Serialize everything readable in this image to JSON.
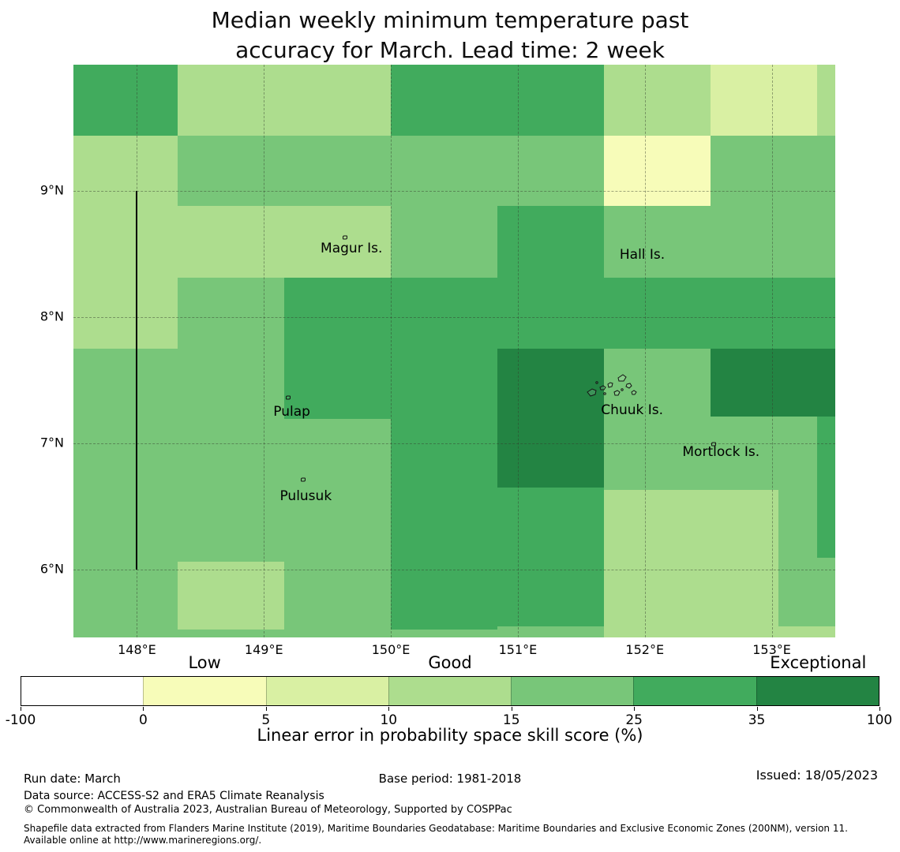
{
  "title": {
    "line1": "Median weekly minimum temperature past",
    "line2": "accuracy for March. Lead time: 2 week"
  },
  "palette": {
    "-100-0": "#ffffff",
    "0-5": "#f7fcb9",
    "5-10": "#d9f0a3",
    "10-15": "#addd8e",
    "15-25": "#78c679",
    "25-35": "#41ab5d",
    "35-100": "#238443"
  },
  "chart_data": {
    "type": "heatmap",
    "title": "Median weekly minimum temperature past accuracy for March. Lead time: 2 week",
    "value_label": "Linear error in probability space skill score (%)",
    "lon_range": [
      147.5,
      153.5
    ],
    "lat_range": [
      5.46,
      10.0
    ],
    "grid_lons": [
      148,
      149,
      150,
      151,
      152,
      153
    ],
    "grid_lats": [
      6,
      7,
      8,
      9
    ],
    "base_class": "15-25",
    "class_bins": [
      "-100-0",
      "0-5",
      "5-10",
      "10-15",
      "15-25",
      "25-35",
      "35-100"
    ],
    "cells": [
      {
        "lon1": 147.5,
        "lon2": 148.32,
        "lat1": 10.0,
        "lat2": 9.44,
        "class": "25-35"
      },
      {
        "lon1": 148.32,
        "lon2": 150.0,
        "lat1": 10.0,
        "lat2": 9.44,
        "class": "10-15"
      },
      {
        "lon1": 150.0,
        "lon2": 151.68,
        "lat1": 10.0,
        "lat2": 9.44,
        "class": "25-35"
      },
      {
        "lon1": 151.68,
        "lon2": 152.52,
        "lat1": 10.0,
        "lat2": 9.44,
        "class": "10-15"
      },
      {
        "lon1": 152.52,
        "lon2": 153.36,
        "lat1": 10.0,
        "lat2": 9.44,
        "class": "5-10"
      },
      {
        "lon1": 153.36,
        "lon2": 153.5,
        "lat1": 10.0,
        "lat2": 9.44,
        "class": "10-15"
      },
      {
        "lon1": 147.5,
        "lon2": 148.32,
        "lat1": 9.44,
        "lat2": 8.88,
        "class": "10-15"
      },
      {
        "lon1": 151.68,
        "lon2": 152.52,
        "lat1": 9.44,
        "lat2": 8.88,
        "class": "0-5"
      },
      {
        "lon1": 147.5,
        "lon2": 150.0,
        "lat1": 8.88,
        "lat2": 8.31,
        "class": "10-15"
      },
      {
        "lon1": 150.84,
        "lon2": 151.68,
        "lat1": 8.88,
        "lat2": 8.31,
        "class": "25-35"
      },
      {
        "lon1": 147.5,
        "lon2": 148.32,
        "lat1": 8.31,
        "lat2": 7.75,
        "class": "10-15"
      },
      {
        "lon1": 149.16,
        "lon2": 153.5,
        "lat1": 8.31,
        "lat2": 7.75,
        "class": "25-35"
      },
      {
        "lon1": 149.16,
        "lon2": 150.84,
        "lat1": 7.75,
        "lat2": 7.19,
        "class": "25-35"
      },
      {
        "lon1": 150.84,
        "lon2": 151.68,
        "lat1": 7.75,
        "lat2": 6.65,
        "class": "35-100"
      },
      {
        "lon1": 152.52,
        "lon2": 153.5,
        "lat1": 7.75,
        "lat2": 7.21,
        "class": "35-100"
      },
      {
        "lon1": 150.0,
        "lon2": 150.84,
        "lat1": 7.19,
        "lat2": 5.52,
        "class": "25-35"
      },
      {
        "lon1": 153.36,
        "lon2": 153.5,
        "lat1": 7.21,
        "lat2": 6.09,
        "class": "25-35"
      },
      {
        "lon1": 150.84,
        "lon2": 151.68,
        "lat1": 6.65,
        "lat2": 5.55,
        "class": "25-35"
      },
      {
        "lon1": 151.68,
        "lon2": 153.05,
        "lat1": 6.63,
        "lat2": 5.55,
        "class": "10-15"
      },
      {
        "lon1": 148.32,
        "lon2": 149.16,
        "lat1": 6.06,
        "lat2": 5.52,
        "class": "10-15"
      },
      {
        "lon1": 151.68,
        "lon2": 153.5,
        "lat1": 5.55,
        "lat2": 5.46,
        "class": "10-15"
      }
    ],
    "place_labels": [
      {
        "text": "Magur Is.",
        "lon": 149.69,
        "lat": 8.54
      },
      {
        "text": "Hall Is.",
        "lon": 151.98,
        "lat": 8.49
      },
      {
        "text": "Pulap",
        "lon": 149.22,
        "lat": 7.25
      },
      {
        "text": "Chuuk Is.",
        "lon": 151.9,
        "lat": 7.26
      },
      {
        "text": "Mortlock Is.",
        "lon": 152.6,
        "lat": 6.93
      },
      {
        "text": "Pulusuk",
        "lon": 149.33,
        "lat": 6.58
      }
    ],
    "islets": [
      {
        "lon": 149.64,
        "lat": 8.63
      },
      {
        "lon": 149.19,
        "lat": 7.36
      },
      {
        "lon": 149.31,
        "lat": 6.71
      },
      {
        "lon": 152.54,
        "lat": 6.99
      }
    ],
    "boundary_line": {
      "lon": 148.0,
      "lat_from": 9.0,
      "lat_to": 6.0
    },
    "xticks": [
      {
        "lon": 148,
        "label": "148°E"
      },
      {
        "lon": 149,
        "label": "149°E"
      },
      {
        "lon": 150,
        "label": "150°E"
      },
      {
        "lon": 151,
        "label": "151°E"
      },
      {
        "lon": 152,
        "label": "152°E"
      },
      {
        "lon": 153,
        "label": "153°E"
      }
    ],
    "yticks": [
      {
        "lat": 9,
        "label": "9°N"
      },
      {
        "lat": 8,
        "label": "8°N"
      },
      {
        "lat": 7,
        "label": "7°N"
      },
      {
        "lat": 6,
        "label": "6°N"
      }
    ]
  },
  "colorbar": {
    "segments": [
      "#ffffff",
      "#f7fcb9",
      "#d9f0a3",
      "#addd8e",
      "#78c679",
      "#41ab5d",
      "#238443"
    ],
    "tick_labels": [
      "-100",
      "0",
      "5",
      "10",
      "15",
      "25",
      "35",
      "100"
    ],
    "zone_labels": [
      {
        "text": "Low",
        "pos_sevenths": 1.5
      },
      {
        "text": "Good",
        "pos_sevenths": 3.5
      },
      {
        "text": "Exceptional",
        "pos_sevenths": 6.5
      }
    ],
    "xlabel": "Linear error in probability space skill score (%)"
  },
  "footer": {
    "run_date": "Run date: March",
    "base_period": "Base period: 1981-2018",
    "issued": "Issued: 18/05/2023",
    "data_source": "Data source: ACCESS-S2 and ERA5 Climate Reanalysis",
    "copyright": "© Commonwealth of Australia 2023, Australian Bureau of Meteorology, Supported by COSPPac",
    "shapefile_note": "Shapefile data extracted from Flanders Marine Institute (2019), Maritime Boundaries Geodatabase: Maritime Boundaries and Exclusive Economic Zones (200NM), version 11. Available online at http://www.marineregions.org/."
  }
}
